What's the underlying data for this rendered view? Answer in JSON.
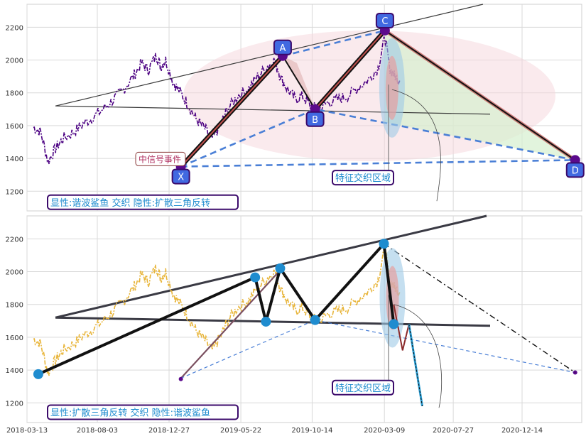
{
  "colors": {
    "grid": "#d9d9d9",
    "frame": "#cfcfcf",
    "price_top": "#4b0082",
    "price_bottom": "#e8b53a",
    "badge_fill": "#4169e1",
    "badge_stroke": "#3b0a6b",
    "dashed_blue": "#4a7fd6",
    "node_blue": "#1f8ccf",
    "pink_shade": "#f6d6dc",
    "green_shade": "#d6efcf",
    "caption_text": "#1f8ccf",
    "event_text": "#b03060"
  },
  "chart_data": [
    {
      "type": "line",
      "panel": "top",
      "ylim": [
        1080,
        2340
      ],
      "yticks": [
        1200,
        1400,
        1600,
        1800,
        2000,
        2200
      ],
      "grid": true,
      "series": [
        {
          "values": [
            [
              "2018-03-26",
              1590
            ],
            [
              "2018-04-10",
              1560
            ],
            [
              "2018-04-25",
              1380
            ],
            [
              "2018-05-10",
              1460
            ],
            [
              "2018-05-25",
              1520
            ],
            [
              "2018-06-15",
              1560
            ],
            [
              "2018-07-05",
              1610
            ],
            [
              "2018-07-25",
              1650
            ],
            [
              "2018-08-15",
              1700
            ],
            [
              "2018-09-05",
              1760
            ],
            [
              "2018-09-25",
              1820
            ],
            [
              "2018-10-15",
              1900
            ],
            [
              "2018-11-01",
              1980
            ],
            [
              "2018-11-15",
              1940
            ],
            [
              "2018-12-01",
              2030
            ],
            [
              "2018-12-10",
              1960
            ],
            [
              "2018-12-20",
              2000
            ],
            [
              "2019-01-05",
              1860
            ],
            [
              "2019-01-20",
              1800
            ],
            [
              "2019-02-05",
              1720
            ],
            [
              "2019-02-20",
              1640
            ],
            [
              "2019-03-10",
              1580
            ],
            [
              "2019-03-25",
              1520
            ],
            [
              "2019-04-10",
              1600
            ],
            [
              "2019-04-25",
              1700
            ],
            [
              "2019-05-15",
              1780
            ],
            [
              "2019-06-05",
              1820
            ],
            [
              "2019-06-25",
              1900
            ],
            [
              "2019-07-15",
              1960
            ],
            [
              "2019-07-30",
              2000
            ],
            [
              "2019-08-10",
              1900
            ],
            [
              "2019-08-25",
              1820
            ],
            [
              "2019-09-10",
              1760
            ],
            [
              "2019-09-25",
              1780
            ],
            [
              "2019-10-10",
              1720
            ],
            [
              "2019-10-28",
              1700
            ],
            [
              "2019-11-15",
              1740
            ],
            [
              "2019-12-05",
              1760
            ],
            [
              "2019-12-25",
              1780
            ],
            [
              "2020-01-15",
              1830
            ],
            [
              "2020-02-05",
              1880
            ],
            [
              "2020-02-25",
              1950
            ],
            [
              "2020-03-10",
              2140
            ],
            [
              "2020-03-20",
              1950
            ],
            [
              "2020-03-30",
              1900
            ],
            [
              "2020-04-10",
              1880
            ]
          ]
        }
      ],
      "pattern_points": [
        {
          "label": "X",
          "x": "2019-01-20",
          "y": 1350
        },
        {
          "label": "A",
          "x": "2019-08-15",
          "y": 2025
        },
        {
          "label": "B",
          "x": "2019-10-20",
          "y": 1700
        },
        {
          "label": "C",
          "x": "2020-03-10",
          "y": 2180
        },
        {
          "label": "D",
          "x": "2021-04-01",
          "y": 1390
        }
      ],
      "annotations": {
        "event": "中信号事件",
        "zone": "特征交织区域",
        "caption": "显性:谐波鲨鱼 交织 隐性:扩散三角反转"
      }
    },
    {
      "type": "line",
      "panel": "bottom",
      "ylim": [
        1080,
        2340
      ],
      "yticks": [
        1200,
        1400,
        1600,
        1800,
        2000,
        2200
      ],
      "grid": true,
      "xticks": [
        "2018-03-13",
        "2018-08-03",
        "2018-12-27",
        "2019-05-22",
        "2019-10-14",
        "2020-03-09",
        "2020-07-27",
        "2020-12-14"
      ],
      "series": [
        {
          "values": [
            [
              "2018-03-26",
              1590
            ],
            [
              "2018-04-10",
              1560
            ],
            [
              "2018-04-25",
              1380
            ],
            [
              "2018-05-10",
              1460
            ],
            [
              "2018-05-25",
              1520
            ],
            [
              "2018-06-15",
              1560
            ],
            [
              "2018-07-05",
              1610
            ],
            [
              "2018-07-25",
              1650
            ],
            [
              "2018-08-15",
              1700
            ],
            [
              "2018-09-05",
              1760
            ],
            [
              "2018-09-25",
              1820
            ],
            [
              "2018-10-15",
              1900
            ],
            [
              "2018-11-01",
              1980
            ],
            [
              "2018-11-15",
              1940
            ],
            [
              "2018-12-01",
              2030
            ],
            [
              "2018-12-10",
              1960
            ],
            [
              "2018-12-20",
              2000
            ],
            [
              "2019-01-05",
              1860
            ],
            [
              "2019-01-20",
              1800
            ],
            [
              "2019-02-05",
              1720
            ],
            [
              "2019-02-20",
              1640
            ],
            [
              "2019-03-10",
              1580
            ],
            [
              "2019-03-25",
              1520
            ],
            [
              "2019-04-10",
              1600
            ],
            [
              "2019-04-25",
              1700
            ],
            [
              "2019-05-15",
              1780
            ],
            [
              "2019-06-05",
              1820
            ],
            [
              "2019-06-25",
              1900
            ],
            [
              "2019-07-15",
              1960
            ],
            [
              "2019-07-30",
              2000
            ],
            [
              "2019-08-10",
              1900
            ],
            [
              "2019-08-25",
              1820
            ],
            [
              "2019-09-10",
              1760
            ],
            [
              "2019-09-25",
              1780
            ],
            [
              "2019-10-10",
              1720
            ],
            [
              "2019-10-28",
              1700
            ],
            [
              "2019-11-15",
              1740
            ],
            [
              "2019-12-05",
              1760
            ],
            [
              "2019-12-25",
              1780
            ],
            [
              "2020-01-15",
              1830
            ],
            [
              "2020-02-05",
              1880
            ],
            [
              "2020-02-25",
              1950
            ],
            [
              "2020-03-10",
              2140
            ],
            [
              "2020-03-20",
              1950
            ],
            [
              "2020-03-30",
              1900
            ],
            [
              "2020-04-10",
              1880
            ]
          ]
        }
      ],
      "pattern_points": [
        {
          "x": "2018-04-05",
          "y": 1375
        },
        {
          "x": "2019-06-20",
          "y": 1965
        },
        {
          "x": "2019-07-12",
          "y": 1695
        },
        {
          "x": "2019-08-10",
          "y": 2020
        },
        {
          "x": "2019-10-20",
          "y": 1705
        },
        {
          "x": "2020-03-08",
          "y": 2170
        },
        {
          "x": "2020-03-28",
          "y": 1680
        }
      ],
      "projection_path": [
        [
          "2020-03-28",
          1800
        ],
        [
          "2020-04-15",
          1520
        ],
        [
          "2020-04-28",
          1680
        ],
        [
          "2020-05-25",
          1180
        ]
      ],
      "annotations": {
        "zone": "特征交织区域",
        "caption": "显性:扩散三角反转 交织 隐性:谐波鲨鱼"
      }
    }
  ]
}
